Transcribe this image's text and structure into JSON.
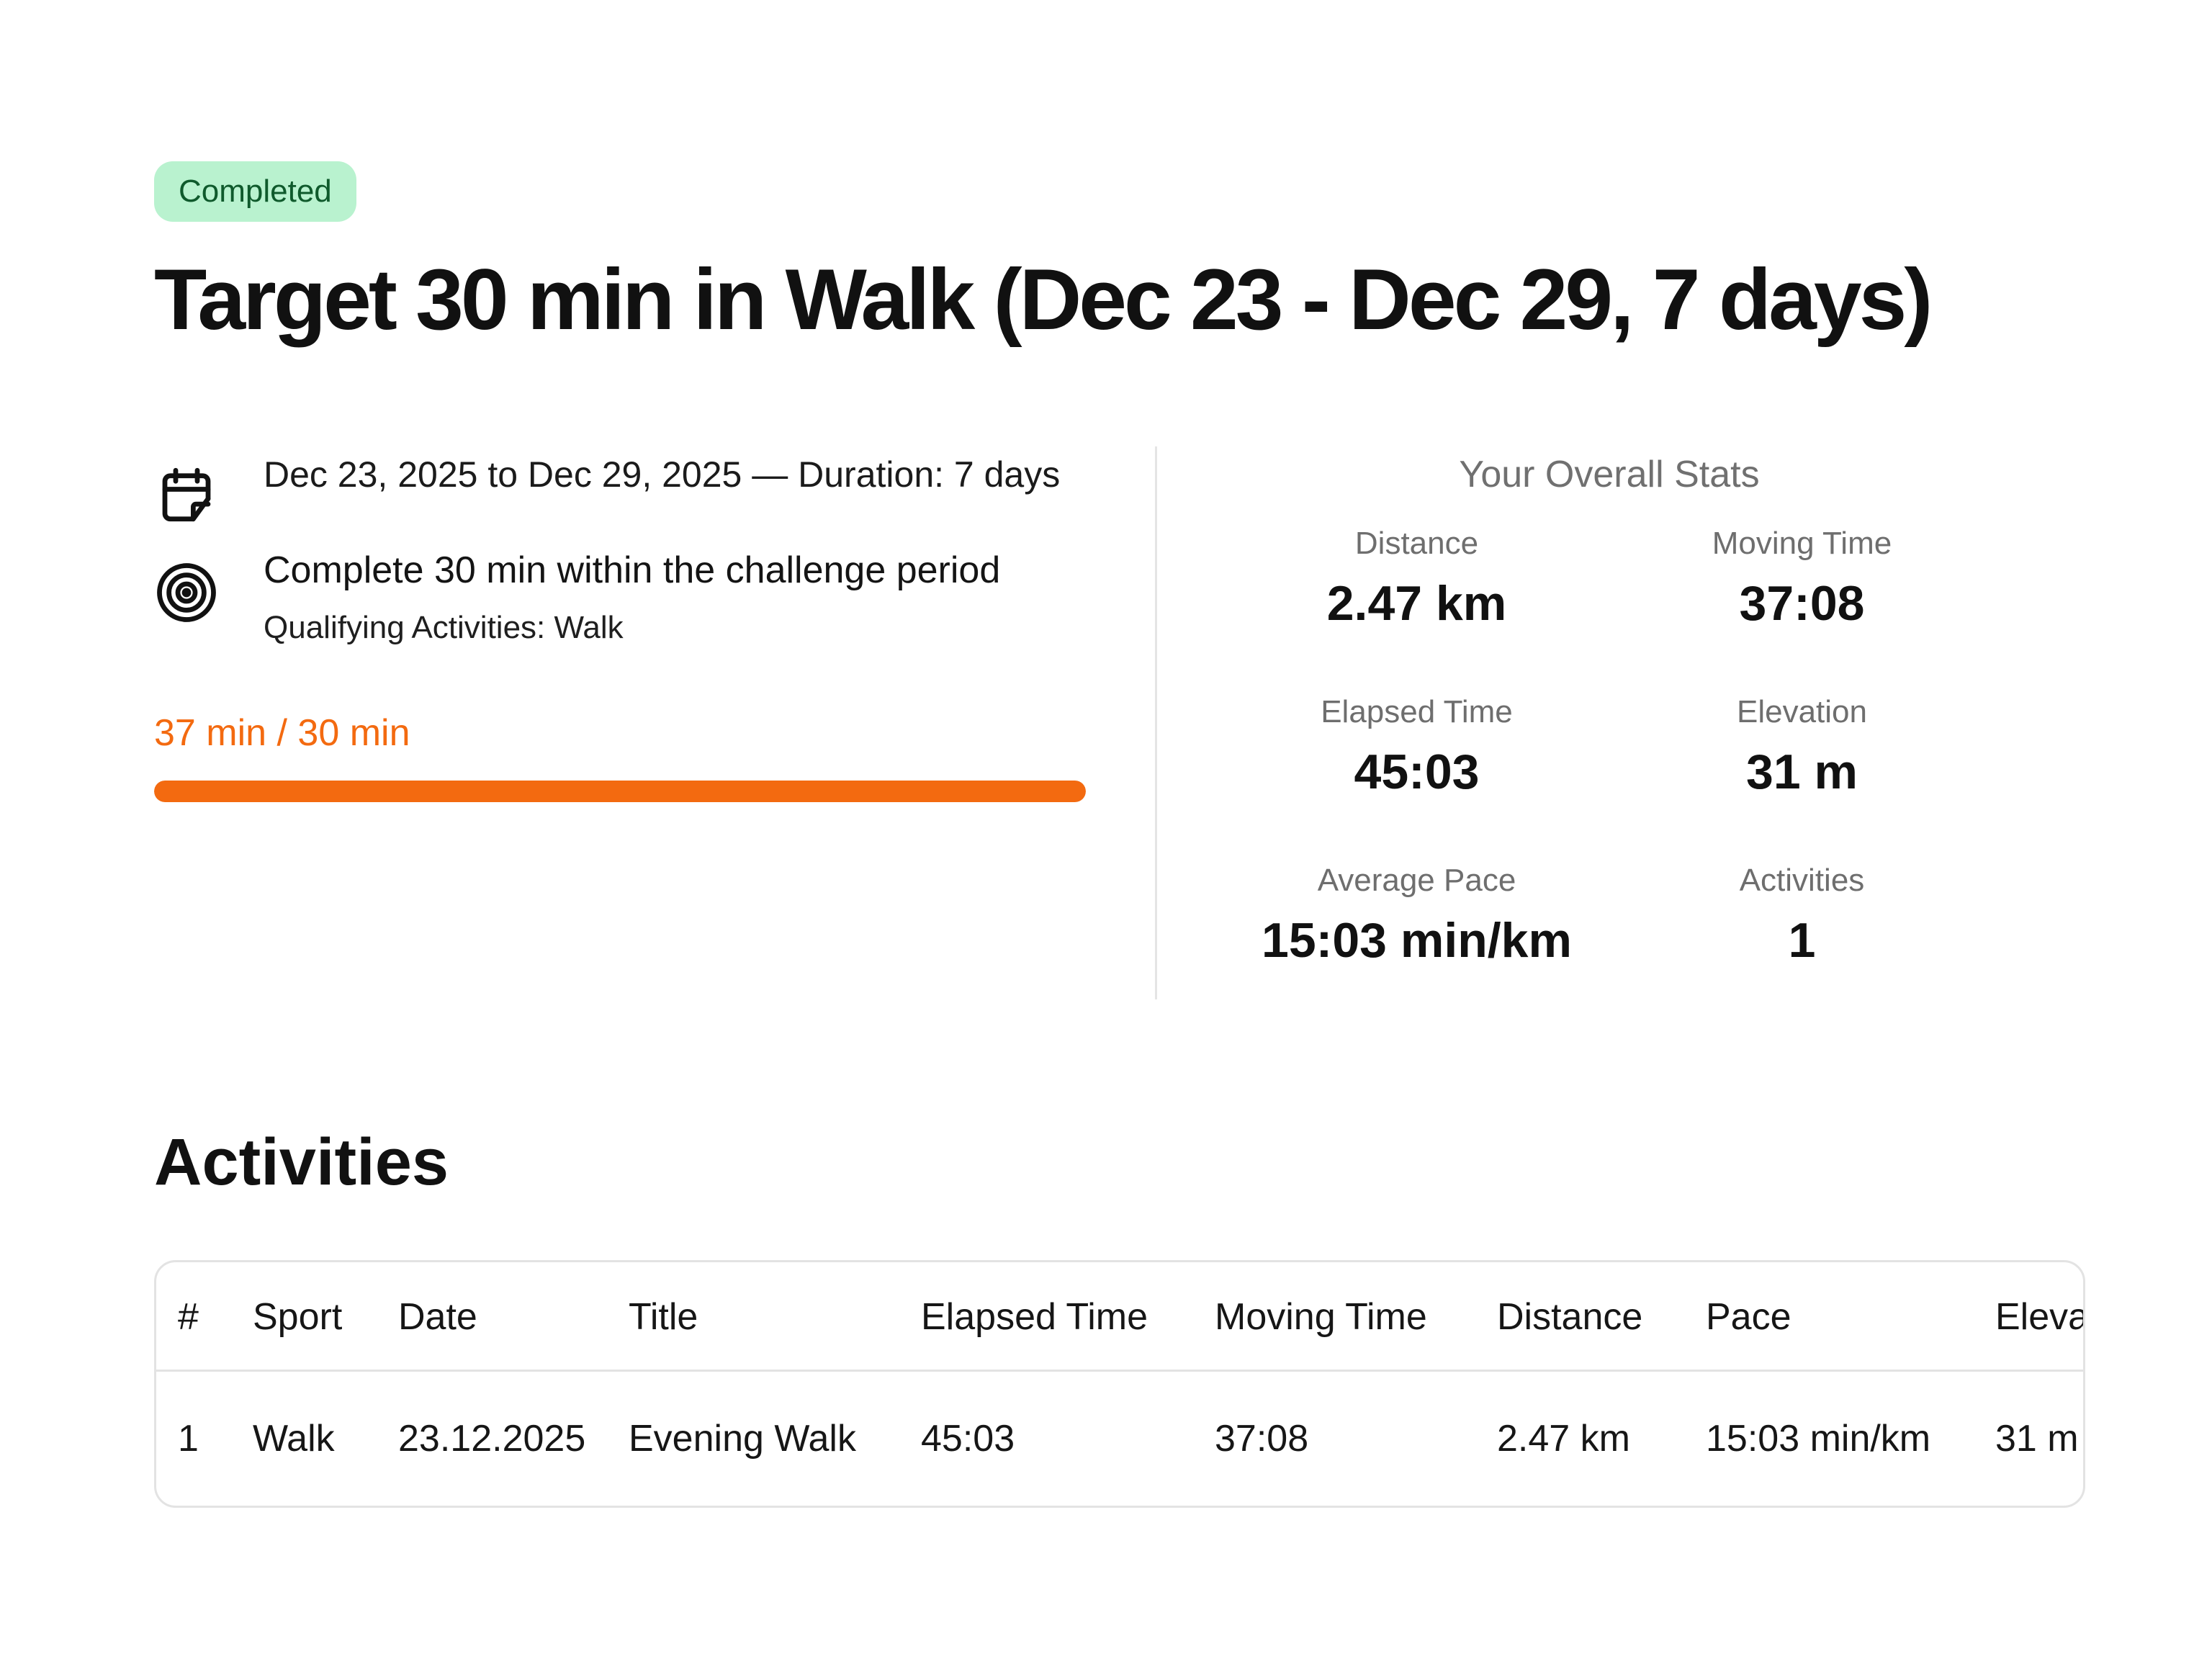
{
  "status_badge": "Completed",
  "title": "Target 30 min in Walk (Dec 23 - Dec 29, 7 days)",
  "info": {
    "icons": {
      "date": "calendar-icon",
      "goal": "target-icon"
    },
    "date_range": "Dec 23, 2025 to Dec 29, 2025 — Duration: 7 days",
    "goal_main": "Complete 30 min within the challenge period",
    "goal_sub": "Qualifying Activities: Walk"
  },
  "progress": {
    "label": "37 min / 30 min",
    "fraction": 1.0,
    "color": "#f36a10"
  },
  "stats": {
    "title": "Your Overall Stats",
    "items": [
      {
        "label": "Distance",
        "value": "2.47 km"
      },
      {
        "label": "Moving Time",
        "value": "37:08"
      },
      {
        "label": "Elapsed Time",
        "value": "45:03"
      },
      {
        "label": "Elevation",
        "value": "31 m"
      },
      {
        "label": "Average Pace",
        "value": "15:03 min/km"
      },
      {
        "label": "Activities",
        "value": "1"
      }
    ]
  },
  "activities": {
    "title": "Activities",
    "columns": [
      "#",
      "Sport",
      "Date",
      "Title",
      "Elapsed Time",
      "Moving Time",
      "Distance",
      "Pace",
      "Eleva"
    ],
    "rows": [
      [
        "1",
        "Walk",
        "23.12.2025",
        "Evening Walk",
        "45:03",
        "37:08",
        "2.47 km",
        "15:03 min/km",
        "31 m"
      ]
    ]
  }
}
